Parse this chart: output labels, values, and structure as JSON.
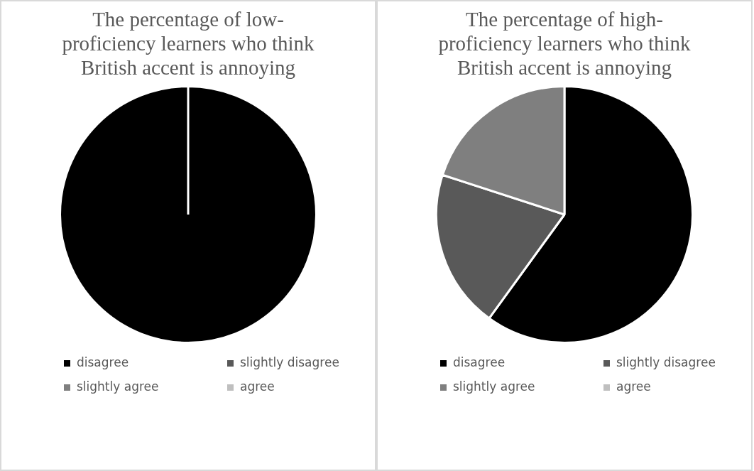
{
  "chart_data": [
    {
      "type": "pie",
      "title": "The percentage of low-proficiency learners who think British accent is annoying",
      "categories": [
        "disagree",
        "slightly disagree",
        "slightly agree",
        "agree"
      ],
      "values": [
        100,
        0,
        0,
        0
      ],
      "colors": [
        "#000000",
        "#595959",
        "#7f7f7f",
        "#bfbfbf"
      ],
      "legend": "bottom"
    },
    {
      "type": "pie",
      "title": "The percentage of high-proficiency learners who think British accent is annoying",
      "categories": [
        "disagree",
        "slightly disagree",
        "slightly agree",
        "agree"
      ],
      "values": [
        60,
        20,
        20,
        0
      ],
      "colors": [
        "#000000",
        "#595959",
        "#7f7f7f",
        "#bfbfbf"
      ],
      "legend": "bottom"
    }
  ]
}
